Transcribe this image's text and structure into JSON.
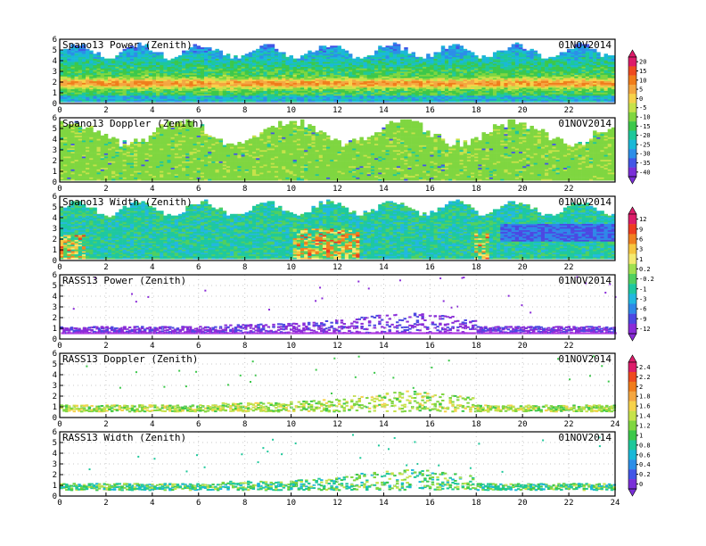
{
  "figure": {
    "date": "01NOV2014"
  },
  "colorbars": [
    {
      "name": "power",
      "ticks": [
        "20",
        "15",
        "10",
        "5",
        "0",
        "-5",
        "-10",
        "-15",
        "-20",
        "-25",
        "-30",
        "-35",
        "-40"
      ]
    },
    {
      "name": "width",
      "ticks": [
        "12",
        "9",
        "6",
        "3",
        "1",
        "0.2",
        "-0.2",
        "-1",
        "-3",
        "-6",
        "-9",
        "-12"
      ]
    },
    {
      "name": "doppler",
      "ticks": [
        "2.4",
        "2.2",
        "2",
        "1.8",
        "1.6",
        "1.4",
        "1.2",
        "1",
        "0.8",
        "0.6",
        "0.4",
        "0.2",
        "0"
      ]
    }
  ],
  "chart_data": [
    {
      "type": "heatmap",
      "title": "Spano13 Power (Zenith)",
      "date": "01NOV2014",
      "xlim": [
        0,
        24
      ],
      "ylim": [
        0,
        6
      ],
      "xticks": [
        "0",
        "2",
        "4",
        "6",
        "8",
        "10",
        "12",
        "14",
        "16",
        "18",
        "20",
        "22"
      ],
      "yticks": [
        "0",
        "1",
        "2",
        "3",
        "4",
        "5",
        "6"
      ],
      "colorbar": "power",
      "description": "dense field; strongest echoes (yellow/orange, ~0 to 10) in a band at 1.5-2.5 km all day; cyan/blue (-20 to -30) above 3 km"
    },
    {
      "type": "heatmap",
      "title": "Spano13 Doppler (Zenith)",
      "date": "01NOV2014",
      "xlim": [
        0,
        24
      ],
      "ylim": [
        0,
        6
      ],
      "xticks": [
        "0",
        "2",
        "4",
        "6",
        "8",
        "10",
        "12",
        "14",
        "16",
        "18",
        "20",
        "22"
      ],
      "yticks": [
        "0",
        "1",
        "2",
        "3",
        "4",
        "5",
        "6"
      ],
      "colorbar": "power",
      "description": "nearly uniform green field across 0-5.5 km, with sparse lighter and blue speckles"
    },
    {
      "type": "heatmap",
      "title": "Spano13 Width (Zenith)",
      "date": "01NOV2014",
      "xlim": [
        0,
        24
      ],
      "ylim": [
        0,
        6
      ],
      "xticks": [
        "0",
        "2",
        "4",
        "6",
        "8",
        "10",
        "12",
        "14",
        "16",
        "18",
        "20",
        "22"
      ],
      "yticks": [
        "0",
        "1",
        "2",
        "3",
        "4",
        "5",
        "6"
      ],
      "colorbar": "width",
      "description": "mostly cyan/green; red/orange patches near 1-2 km around 0-1 h, 10-13 h and 18.3 h; blue region above 2 km after 19 h"
    },
    {
      "type": "scatter",
      "title": "RASS13 Power (Zenith)",
      "date": "01NOV2014",
      "xlim": [
        0,
        24
      ],
      "ylim": [
        0,
        6
      ],
      "xticks": [
        "0",
        "2",
        "4",
        "6",
        "8",
        "10",
        "12",
        "14",
        "16",
        "18",
        "20",
        "22"
      ],
      "yticks": [
        "0",
        "1",
        "2",
        "3",
        "4",
        "5",
        "6"
      ],
      "colorbar": "width",
      "description": "purple points concentrated at 0.5-1 km all day, extending to ~2 km between 12 and 17 h; scattered points aloft"
    },
    {
      "type": "scatter",
      "title": "RASS13 Doppler (Zenith)",
      "date": "01NOV2014",
      "xlim": [
        0,
        24
      ],
      "ylim": [
        0,
        6
      ],
      "xticks": [
        "0",
        "2",
        "4",
        "6",
        "8",
        "10",
        "12",
        "14",
        "16",
        "18",
        "20",
        "22",
        "24"
      ],
      "yticks": [
        "0",
        "1",
        "2",
        "3",
        "4",
        "5",
        "6"
      ],
      "colorbar": "doppler",
      "description": "green/yellow points in a band at 0.5-1 km, rising to ~2 km between 10 and 17 h"
    },
    {
      "type": "scatter",
      "title": "RASS13 Width (Zenith)",
      "date": "01NOV2014",
      "xlim": [
        0,
        24
      ],
      "ylim": [
        0,
        6
      ],
      "xticks": [
        "0",
        "2",
        "4",
        "6",
        "8",
        "10",
        "12",
        "14",
        "16",
        "18",
        "20",
        "22",
        "24"
      ],
      "yticks": [
        "0",
        "1",
        "2",
        "3",
        "4",
        "5",
        "6"
      ],
      "colorbar": "doppler",
      "description": "green/cyan points at 0.5-1 km, up to ~2.3 km around 15-17 h; sparse points aloft"
    }
  ]
}
